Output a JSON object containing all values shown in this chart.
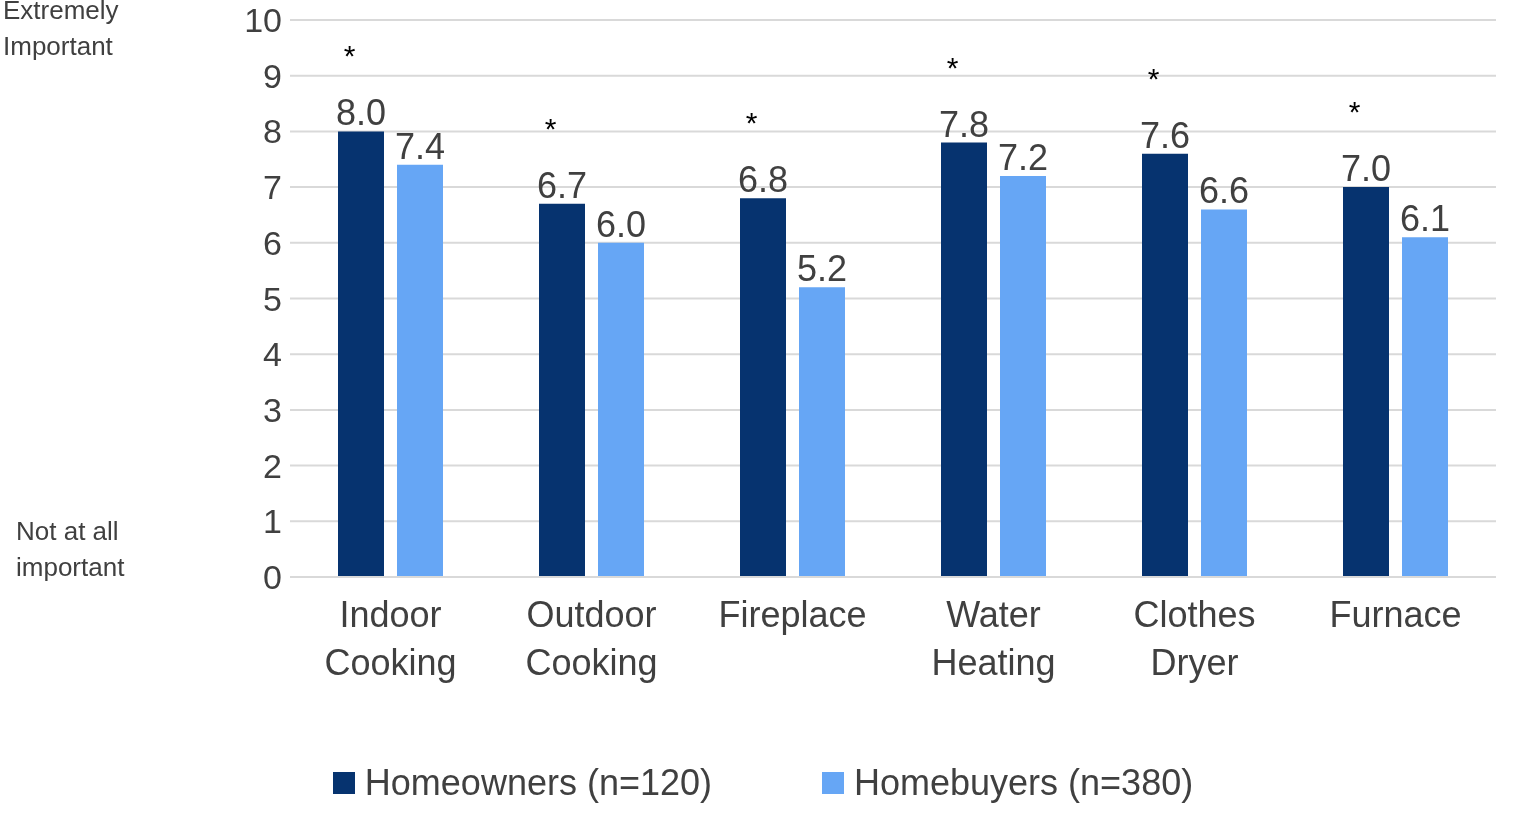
{
  "chart_data": {
    "type": "bar",
    "categories": [
      "Indoor Cooking",
      "Outdoor Cooking",
      "Fireplace",
      "Water Heating",
      "Clothes Dryer",
      "Furnace"
    ],
    "series": [
      {
        "name": "Homeowners (n=120)",
        "color": "#06336f",
        "values": [
          8.0,
          6.7,
          6.8,
          7.8,
          7.6,
          7.0
        ],
        "value_labels": [
          "8.0",
          "6.7",
          "6.8",
          "7.8",
          "7.6",
          "7.0"
        ]
      },
      {
        "name": "Homebuyers (n=380)",
        "color": "#66a6f5",
        "values": [
          7.4,
          6.0,
          5.2,
          7.2,
          6.6,
          6.1
        ],
        "value_labels": [
          "7.4",
          "6.0",
          "5.2",
          "7.2",
          "6.6",
          "6.1"
        ]
      }
    ],
    "ylim": [
      0,
      10
    ],
    "yticks": [
      0,
      1,
      2,
      3,
      4,
      5,
      6,
      7,
      8,
      9,
      10
    ],
    "grid": "y",
    "legend": "bottom",
    "annotations": [
      "Extremely Important",
      "Not at all important",
      "*",
      "*",
      "*",
      "*",
      "*",
      "*"
    ]
  }
}
